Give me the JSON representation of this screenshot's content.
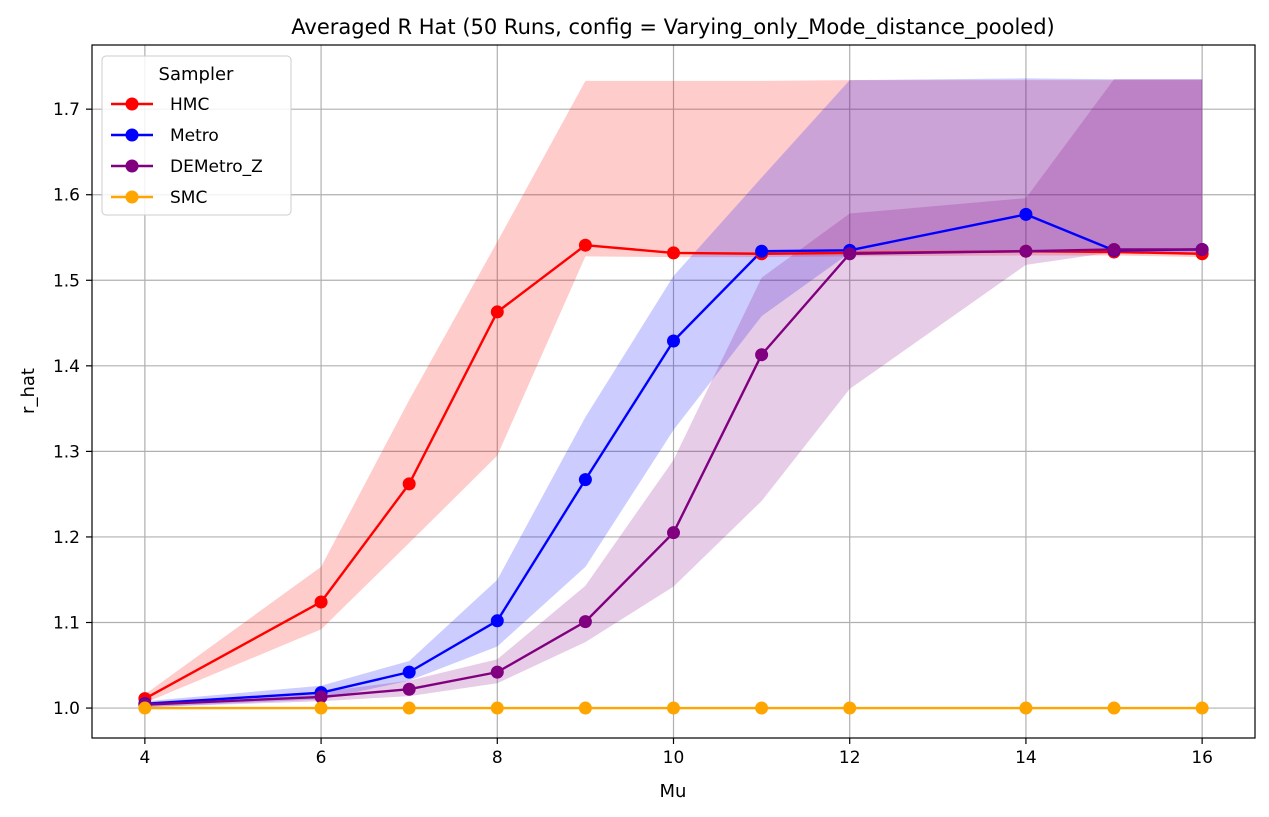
{
  "chart_data": {
    "type": "line",
    "title": "Averaged R Hat (50 Runs, config = Varying_only_Mode_distance_pooled)",
    "xlabel": "Mu",
    "ylabel": "r_hat",
    "xlim": [
      3.4,
      16.6
    ],
    "ylim": [
      0.965,
      1.775
    ],
    "xticks": [
      4,
      6,
      8,
      10,
      12,
      14,
      16
    ],
    "yticks": [
      1.0,
      1.1,
      1.2,
      1.3,
      1.4,
      1.5,
      1.6,
      1.7
    ],
    "ytick_labels": [
      "1.0",
      "1.1",
      "1.2",
      "1.3",
      "1.4",
      "1.5",
      "1.6",
      "1.7"
    ],
    "grid": true,
    "legend": {
      "title": "Sampler",
      "position": "top-left"
    },
    "series": [
      {
        "name": "HMC",
        "color": "#ff0000",
        "x": [
          4,
          6,
          7,
          8,
          9,
          10,
          11,
          12,
          14,
          15,
          16
        ],
        "y": [
          1.011,
          1.124,
          1.262,
          1.463,
          1.541,
          1.532,
          1.531,
          1.532,
          1.534,
          1.533,
          1.531
        ],
        "band_low": [
          1.006,
          1.092,
          1.193,
          1.295,
          1.528,
          1.527,
          1.527,
          1.528,
          1.529,
          1.529,
          1.527
        ],
        "band_high": [
          1.016,
          1.165,
          1.36,
          1.545,
          1.733,
          1.733,
          1.733,
          1.734,
          1.734,
          1.734,
          1.734
        ]
      },
      {
        "name": "Metro",
        "color": "#0000ff",
        "x": [
          4,
          6,
          7,
          8,
          9,
          10,
          11,
          12,
          14,
          15,
          16
        ],
        "y": [
          1.005,
          1.018,
          1.042,
          1.102,
          1.267,
          1.429,
          1.534,
          1.535,
          1.577,
          1.535,
          1.536
        ],
        "band_low": [
          1.001,
          1.01,
          1.032,
          1.072,
          1.165,
          1.325,
          1.458,
          1.532,
          1.532,
          1.532,
          1.533
        ],
        "band_high": [
          1.008,
          1.026,
          1.055,
          1.15,
          1.34,
          1.505,
          1.62,
          1.734,
          1.736,
          1.735,
          1.735
        ]
      },
      {
        "name": "DEMetro_Z",
        "color": "#800080",
        "x": [
          4,
          6,
          7,
          8,
          9,
          10,
          11,
          12,
          14,
          15,
          16
        ],
        "y": [
          1.004,
          1.013,
          1.022,
          1.042,
          1.101,
          1.205,
          1.413,
          1.531,
          1.534,
          1.536,
          1.536
        ],
        "band_low": [
          1.001,
          1.008,
          1.014,
          1.029,
          1.077,
          1.142,
          1.242,
          1.373,
          1.518,
          1.533,
          1.534
        ],
        "band_high": [
          1.007,
          1.019,
          1.032,
          1.057,
          1.143,
          1.29,
          1.503,
          1.578,
          1.596,
          1.735,
          1.735
        ]
      },
      {
        "name": "SMC",
        "color": "#ffa500",
        "x": [
          4,
          6,
          7,
          8,
          9,
          10,
          11,
          12,
          14,
          15,
          16
        ],
        "y": [
          1.0,
          1.0,
          1.0,
          1.0,
          1.0,
          1.0,
          1.0,
          1.0,
          1.0,
          1.0,
          1.0
        ],
        "band_low": [
          1.0,
          1.0,
          1.0,
          1.0,
          1.0,
          1.0,
          1.0,
          1.0,
          1.0,
          1.0,
          1.0
        ],
        "band_high": [
          1.0,
          1.0,
          1.0,
          1.0,
          1.0,
          1.0,
          1.0,
          1.0,
          1.0,
          1.0,
          1.0
        ]
      }
    ]
  }
}
